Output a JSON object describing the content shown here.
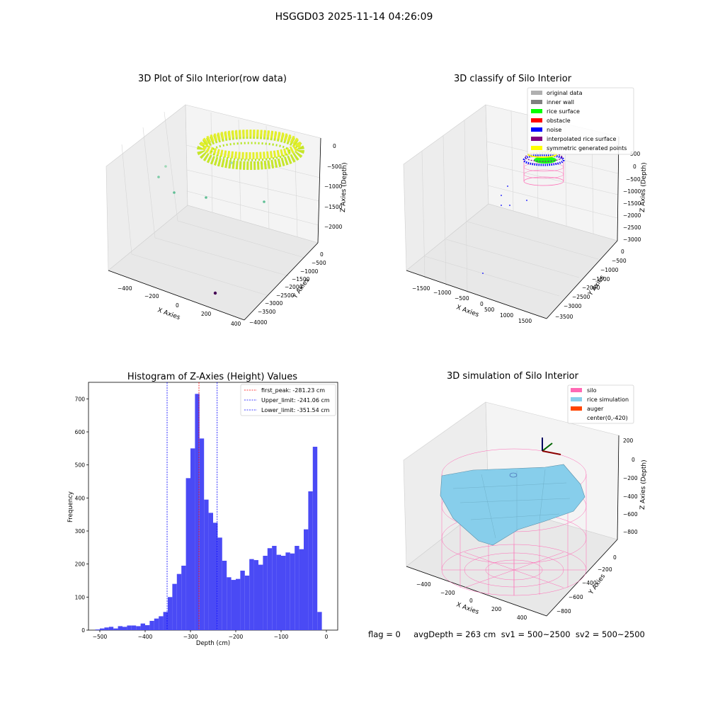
{
  "suptitle": "HSGGD03 2025-11-14 04:26:09",
  "footer": "flag = 0     avgDepth = 263 cm  sv1 = 500~2500  sv2 = 500~2500",
  "colors": {
    "hist_bar": "#4a4af5",
    "peak_line": "#ff0000",
    "limit_line": "#0000ff",
    "pane_face": "#f2f2f2",
    "grid": "#d9d9d9",
    "silo": "#ff69b4",
    "rice_simulation": "#87ceeb",
    "auger": "#ff4500",
    "rice_points_a": "#b5e61d",
    "rice_points_b": "#e4ef2a"
  },
  "plot1": {
    "title": "3D Plot of Silo Interior(row data)",
    "xlabel": "X Axies",
    "ylabel": "Y Axies",
    "zlabel": "Z Axies (Depth)",
    "xticks": [
      "−400",
      "−200",
      "0",
      "200",
      "400"
    ],
    "yticks": [
      "0",
      "−500",
      "−1000",
      "−1500",
      "−2000",
      "−2500",
      "−3000",
      "−3500",
      "−4000"
    ],
    "zticks": [
      "0",
      "−500",
      "−1000",
      "−1500",
      "−2000"
    ]
  },
  "plot2": {
    "title": "3D classify of Silo Interior",
    "xlabel": "X Axies",
    "ylabel": "Y Axies",
    "zlabel": "Z Axies (Depth)",
    "xticks": [
      "−1500",
      "−1000",
      "−500",
      "0",
      "500",
      "1000",
      "1500"
    ],
    "yticks": [
      "0",
      "−500",
      "−1000",
      "−1500",
      "−2000",
      "−2500",
      "−3000",
      "−3500"
    ],
    "zticks": [
      "500",
      "0",
      "−500",
      "−1000",
      "−1500",
      "−2000",
      "−2500",
      "−3000"
    ],
    "legend": [
      {
        "label": "original data",
        "color": "#b0b0b0"
      },
      {
        "label": "inner wall",
        "color": "#808080"
      },
      {
        "label": "rice surface",
        "color": "#00ff00"
      },
      {
        "label": "obstacle",
        "color": "#ff0000"
      },
      {
        "label": "noise",
        "color": "#0000ff"
      },
      {
        "label": "interpolated rice surface",
        "color": "#800080"
      },
      {
        "label": "symmetric generated points",
        "color": "#ffff00"
      }
    ]
  },
  "plot4": {
    "title": "3D simulation of Silo Interior",
    "xlabel": "X Axies",
    "ylabel": "Y Axies",
    "zlabel": "Z Axies (Depth)",
    "xticks": [
      "−400",
      "−200",
      "0",
      "200",
      "400"
    ],
    "yticks": [
      "0",
      "−200",
      "−400",
      "−600",
      "−800"
    ],
    "zticks": [
      "200",
      "0",
      "−200",
      "−400",
      "−600",
      "−800"
    ],
    "legend": [
      {
        "label": "silo",
        "color": "#ff69b4"
      },
      {
        "label": "rice simulation",
        "color": "#87ceeb"
      },
      {
        "label": "auger",
        "color": "#ff4500"
      },
      {
        "label": "center(0,-420)",
        "color": ""
      }
    ]
  },
  "chart_data": [
    {
      "type": "histogram",
      "title": "Histogram of Z-Axies (Height) Values",
      "xlabel": "Depth (cm)",
      "ylabel": "Frequency",
      "xlim": [
        -525,
        25
      ],
      "ylim": [
        0,
        750
      ],
      "xticks": [
        -500,
        -400,
        -300,
        -200,
        -100,
        0
      ],
      "yticks": [
        0,
        100,
        200,
        300,
        400,
        500,
        600,
        700
      ],
      "bin_start": -510,
      "bin_width": 10,
      "counts": [
        2,
        5,
        8,
        10,
        5,
        12,
        10,
        14,
        14,
        12,
        20,
        15,
        28,
        35,
        42,
        55,
        100,
        140,
        170,
        195,
        460,
        550,
        715,
        580,
        395,
        355,
        325,
        280,
        210,
        160,
        152,
        155,
        180,
        165,
        215,
        212,
        198,
        225,
        248,
        255,
        228,
        225,
        235,
        232,
        255,
        245,
        305,
        420,
        555,
        55
      ],
      "vlines": [
        {
          "label": "first_peak: -281.23 cm",
          "x": -281.23,
          "color": "#ff0000"
        },
        {
          "label": "Upper_limit: -241.06 cm",
          "x": -241.06,
          "color": "#0000ff"
        },
        {
          "label": "Lower_limit: -351.54 cm",
          "x": -351.54,
          "color": "#0000ff"
        }
      ],
      "legend_position": "upper right",
      "grid": false
    }
  ]
}
